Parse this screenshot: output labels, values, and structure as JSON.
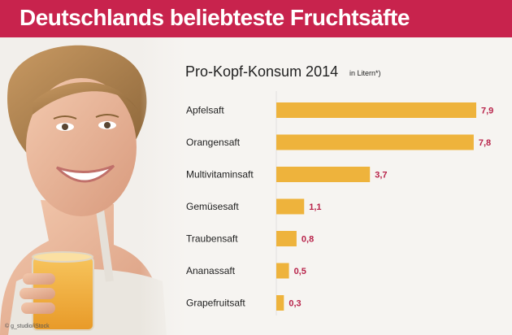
{
  "header": {
    "title": "Deutschlands beliebteste Fruchtsäfte"
  },
  "photo": {
    "credit": "© g_studio/iStock"
  },
  "chart_data": {
    "type": "bar",
    "orientation": "horizontal",
    "title": "Pro-Kopf-Konsum 2014",
    "subtitle": "in Litern*)",
    "categories": [
      "Apfelsaft",
      "Orangensaft",
      "Multivitaminsaft",
      "Gemüsesaft",
      "Traubensaft",
      "Ananassaft",
      "Grapefruitsaft"
    ],
    "values": [
      7.9,
      7.8,
      3.7,
      1.1,
      0.8,
      0.5,
      0.3
    ],
    "value_labels": [
      "7,9",
      "7,8",
      "3,7",
      "1,1",
      "0,8",
      "0,5",
      "0,3"
    ],
    "xlim": [
      0,
      8
    ],
    "grid": false,
    "colors": {
      "bar": "#eeb33c",
      "value_label": "#b8234a",
      "header": "#c8234d"
    }
  }
}
